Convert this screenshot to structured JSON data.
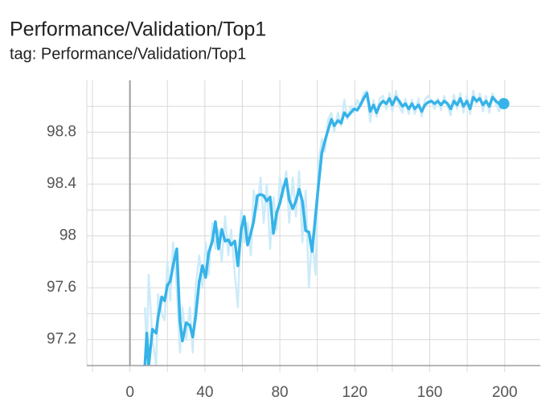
{
  "chart_data": {
    "type": "line",
    "title": "Performance/Validation/Top1",
    "subtitle": "tag: Performance/Validation/Top1",
    "x": [
      8,
      9,
      10,
      12,
      14,
      15,
      17,
      18.5,
      20,
      21.5,
      23,
      25,
      26.7,
      28,
      30,
      32,
      33.5,
      35,
      37,
      38.7,
      40.4,
      42,
      44,
      45.6,
      47.3,
      49,
      50.8,
      52.5,
      54,
      56,
      57.6,
      59.4,
      61,
      62.8,
      64.5,
      66,
      68,
      69.7,
      71.4,
      73,
      74.8,
      76.6,
      78.3,
      80,
      81.7,
      83.4,
      85,
      86.9,
      88.6,
      90.3,
      92,
      93.8,
      95.5,
      97.2,
      99,
      100.6,
      102.4,
      104,
      105.8,
      107.5,
      109,
      111,
      112.7,
      114.4,
      116,
      117.8,
      119.6,
      121.3,
      123,
      124.7,
      126.5,
      128.2,
      130,
      131.6,
      133.3,
      135,
      136.8,
      138.5,
      140,
      142,
      143.7,
      145.4,
      147,
      148.8,
      150.5,
      152,
      154,
      155.7,
      157.4,
      159,
      160.9,
      162.6,
      164.3,
      166,
      167.7,
      169.5,
      171.2,
      172.9,
      174.6,
      176.3,
      178,
      179.8,
      181.5,
      183.2,
      185,
      186.7,
      188.4,
      190,
      191.8,
      193.5,
      195.3,
      197,
      198.7,
      199.5
    ],
    "series": [
      {
        "color": "#cdebf8",
        "values": [
          97.45,
          97.1,
          97.7,
          97.2,
          97.0,
          97.55,
          97.4,
          97.35,
          97.8,
          97.5,
          97.95,
          97.6,
          97.1,
          97.45,
          97.2,
          97.45,
          97.1,
          97.6,
          97.85,
          97.6,
          97.95,
          97.7,
          98.1,
          97.9,
          98.05,
          97.8,
          98.15,
          97.85,
          98.05,
          97.7,
          97.45,
          98.2,
          97.95,
          98.1,
          97.85,
          98.35,
          98.2,
          98.45,
          98.1,
          98.4,
          97.9,
          98.3,
          98.05,
          98.45,
          98.3,
          98.5,
          98.1,
          98.45,
          98.15,
          98.5,
          97.95,
          98.35,
          97.6,
          98.0,
          97.7,
          98.55,
          98.75,
          98.65,
          98.9,
          98.95,
          98.8,
          98.95,
          98.85,
          99.05,
          98.9,
          99.0,
          98.95,
          99.05,
          99.0,
          99.1,
          99.12,
          98.88,
          99.05,
          98.92,
          99.06,
          99.08,
          98.98,
          99.1,
          98.96,
          99.12,
          99.0,
          98.95,
          99.06,
          98.94,
          99.05,
          98.94,
          99.06,
          98.92,
          99.05,
          99.08,
          99.04,
          98.98,
          99.06,
          98.97,
          99.08,
          99.0,
          98.93,
          99.09,
          98.98,
          99.1,
          98.95,
          99.08,
          98.94,
          99.12,
          99.02,
          99.1,
          98.96,
          99.08,
          98.95,
          99.1,
          99.02,
          98.96,
          99.05,
          99.0
        ]
      },
      {
        "color": "#36b3e8",
        "values": [
          97.0,
          97.25,
          97.0,
          97.28,
          97.25,
          97.37,
          97.53,
          97.5,
          97.62,
          97.65,
          97.77,
          97.9,
          97.34,
          97.19,
          97.33,
          97.31,
          97.22,
          97.37,
          97.65,
          97.77,
          97.68,
          97.87,
          97.96,
          98.11,
          97.9,
          98.05,
          97.96,
          97.97,
          97.93,
          97.96,
          97.77,
          98.05,
          98.15,
          97.93,
          98.02,
          98.11,
          98.31,
          98.32,
          98.31,
          98.27,
          98.3,
          98.02,
          98.18,
          98.25,
          98.36,
          98.44,
          98.28,
          98.21,
          98.27,
          98.36,
          98.27,
          98.04,
          98.03,
          97.88,
          98.15,
          98.39,
          98.64,
          98.73,
          98.82,
          98.9,
          98.85,
          98.89,
          98.87,
          98.95,
          98.92,
          98.95,
          98.98,
          98.97,
          99.01,
          99.06,
          99.1,
          98.96,
          99.01,
          98.95,
          99.01,
          99.04,
          99.02,
          99.06,
          99.01,
          99.07,
          99.04,
          99.0,
          99.02,
          98.98,
          99.02,
          98.98,
          99.01,
          98.96,
          99.01,
          99.03,
          99.04,
          99.02,
          99.04,
          99.01,
          99.04,
          99.02,
          98.98,
          99.04,
          99.01,
          99.06,
          99.0,
          99.04,
          98.98,
          99.07,
          99.04,
          99.06,
          99.01,
          99.04,
          99.0,
          99.07,
          99.04,
          99.02,
          99.03,
          99.02
        ]
      }
    ],
    "xlim": [
      -23,
      219
    ],
    "ylim": [
      97.0,
      99.2
    ],
    "xticks": [
      0,
      40,
      80,
      120,
      160,
      200
    ],
    "yticks": [
      97.2,
      97.6,
      98,
      98.4,
      98.8
    ],
    "xgrid": [
      -20,
      0,
      20,
      40,
      60,
      80,
      100,
      120,
      140,
      160,
      180,
      200
    ],
    "ygrid": [
      97.2,
      97.4,
      97.6,
      97.8,
      98,
      98.2,
      98.4,
      98.6,
      98.8,
      99.0
    ],
    "grid": true
  }
}
